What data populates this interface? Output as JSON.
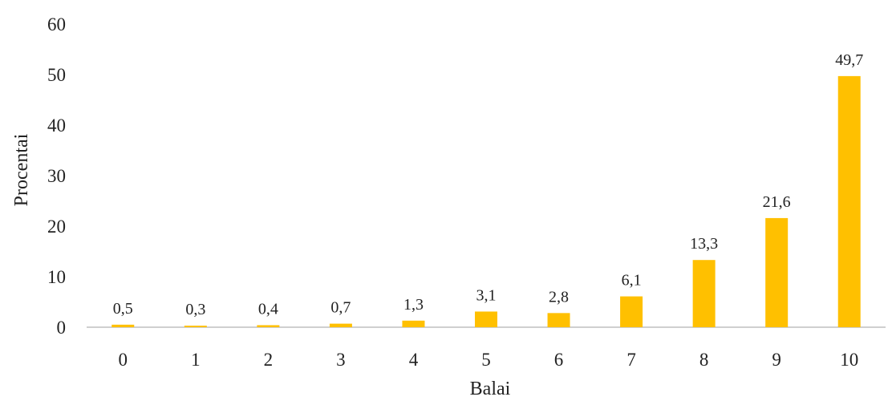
{
  "chart_data": {
    "type": "bar",
    "title": "",
    "xlabel": "Balai",
    "ylabel": "Procentai",
    "categories": [
      "0",
      "1",
      "2",
      "3",
      "4",
      "5",
      "6",
      "7",
      "8",
      "9",
      "10"
    ],
    "values": [
      0.5,
      0.3,
      0.4,
      0.7,
      1.3,
      3.1,
      2.8,
      6.1,
      13.3,
      21.6,
      49.7
    ],
    "data_labels": [
      "0,5",
      "0,3",
      "0,4",
      "0,7",
      "1,3",
      "3,1",
      "2,8",
      "6,1",
      "13,3",
      "21,6",
      "49,7"
    ],
    "yticks": [
      "0",
      "10",
      "20",
      "30",
      "40",
      "50",
      "60"
    ],
    "ylim": [
      0,
      60
    ],
    "grid": false,
    "legend": "none",
    "bar_color": "#FFC000"
  }
}
